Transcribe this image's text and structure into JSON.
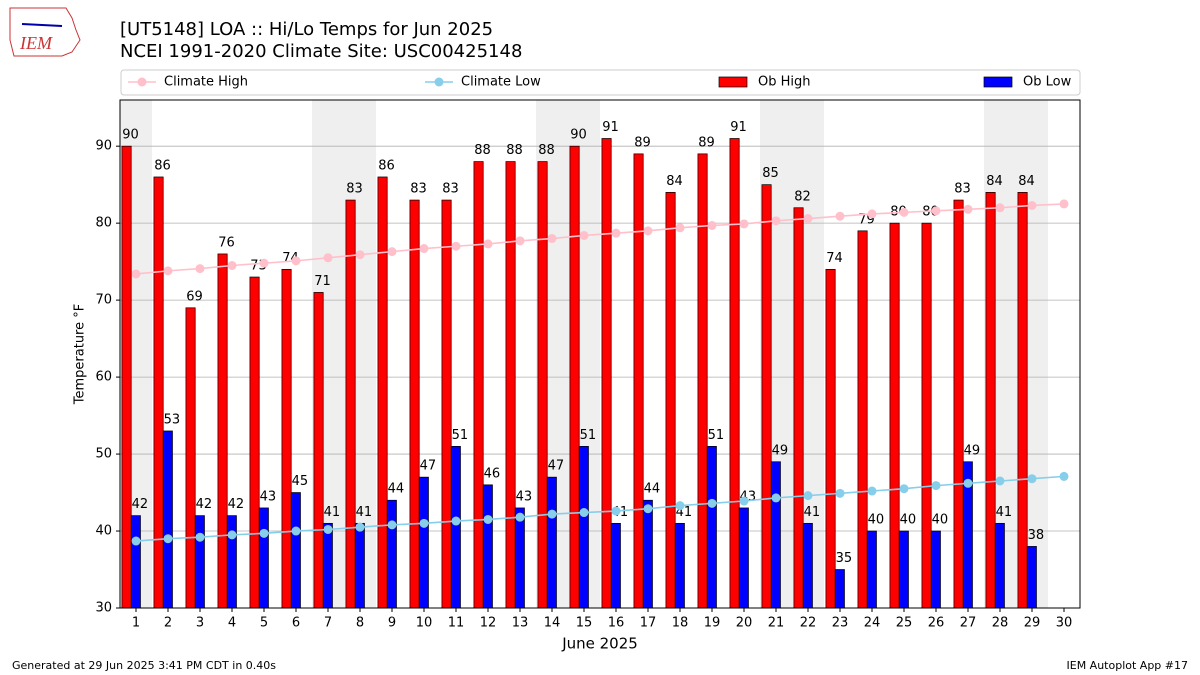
{
  "chart_data": {
    "type": "bar",
    "logo_text": "IEM",
    "title": "[UT5148] LOA :: Hi/Lo Temps for Jun 2025",
    "subtitle": "NCEI 1991-2020 Climate Site: USC00425148",
    "y_label": "Temperature °F",
    "x_label": "June 2025",
    "footer_left": "Generated at 29 Jun 2025 3:41 PM CDT in 0.40s",
    "footer_right": "IEM Autoplot App #17",
    "x": [
      1,
      2,
      3,
      4,
      5,
      6,
      7,
      8,
      9,
      10,
      11,
      12,
      13,
      14,
      15,
      16,
      17,
      18,
      19,
      20,
      21,
      22,
      23,
      24,
      25,
      26,
      27,
      28,
      29,
      30
    ],
    "xlim": [
      0.5,
      30.5
    ],
    "xticks": [
      1,
      2,
      3,
      4,
      5,
      6,
      7,
      8,
      9,
      10,
      11,
      12,
      13,
      14,
      15,
      16,
      17,
      18,
      19,
      20,
      21,
      22,
      23,
      24,
      25,
      26,
      27,
      28,
      29,
      30
    ],
    "ylim": [
      30,
      96
    ],
    "yticks": [
      30,
      40,
      50,
      60,
      70,
      80,
      90
    ],
    "grid": true,
    "shaded_days": [
      1,
      7,
      8,
      14,
      15,
      21,
      22,
      28,
      29
    ],
    "shade_color": "#efefef",
    "series": [
      {
        "name": "Climate High",
        "kind": "line",
        "color": "#ffc0cb",
        "values": [
          73.4,
          73.8,
          74.1,
          74.5,
          74.8,
          75.1,
          75.5,
          75.9,
          76.3,
          76.7,
          77.0,
          77.3,
          77.7,
          78.0,
          78.4,
          78.7,
          79.0,
          79.4,
          79.7,
          79.9,
          80.3,
          80.6,
          80.9,
          81.2,
          81.4,
          81.6,
          81.8,
          82.0,
          82.3,
          82.5
        ]
      },
      {
        "name": "Climate Low",
        "kind": "line",
        "color": "#87ceeb",
        "values": [
          38.7,
          39.0,
          39.2,
          39.5,
          39.7,
          40.0,
          40.2,
          40.5,
          40.8,
          41.0,
          41.3,
          41.5,
          41.8,
          42.2,
          42.4,
          42.6,
          42.9,
          43.3,
          43.6,
          43.9,
          44.3,
          44.6,
          44.9,
          45.2,
          45.5,
          45.9,
          46.2,
          46.5,
          46.8,
          47.1
        ]
      },
      {
        "name": "Ob High",
        "kind": "bar",
        "color": "#ff0000",
        "values": [
          90,
          86,
          69,
          76,
          73,
          74,
          71,
          83,
          86,
          83,
          83,
          88,
          88,
          88,
          90,
          91,
          89,
          84,
          89,
          91,
          85,
          82,
          74,
          79,
          80,
          80,
          83,
          84,
          84,
          null
        ]
      },
      {
        "name": "Ob Low",
        "kind": "bar",
        "color": "#0000ff",
        "values": [
          42,
          53,
          42,
          42,
          43,
          45,
          41,
          41,
          44,
          47,
          51,
          46,
          43,
          47,
          51,
          41,
          44,
          41,
          51,
          43,
          49,
          41,
          35,
          40,
          40,
          40,
          49,
          41,
          38,
          null
        ]
      }
    ]
  }
}
